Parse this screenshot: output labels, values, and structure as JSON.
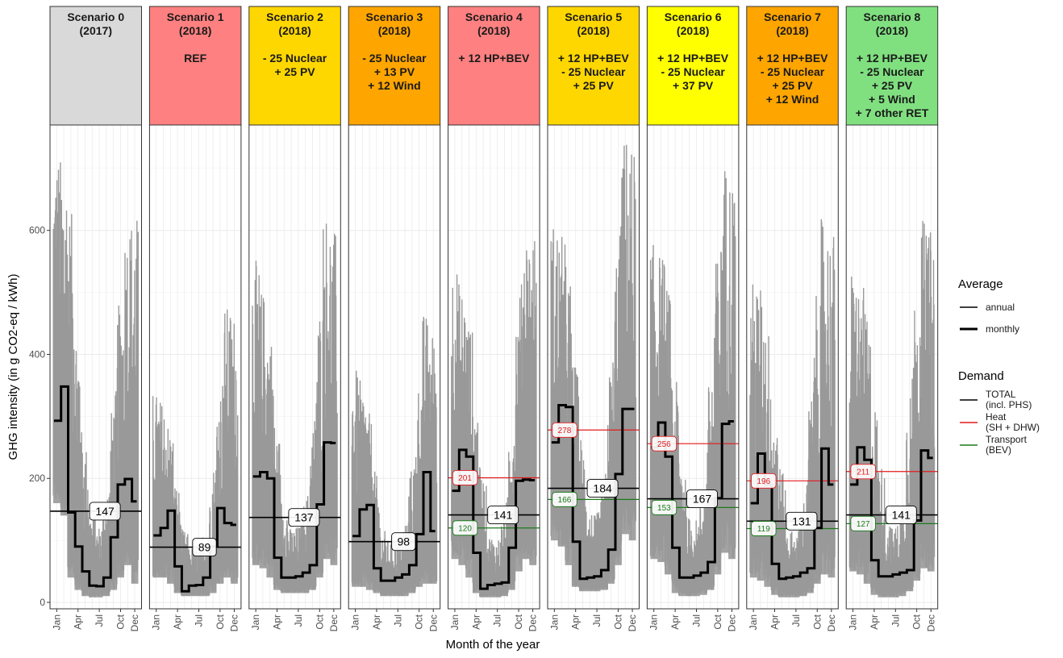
{
  "chart_data": {
    "type": "line",
    "xlabel": "Month of the year",
    "ylabel": "GHG intensity (in g CO2-eq / kWh)",
    "ylim": [
      0,
      770
    ],
    "yticks": [
      0,
      200,
      400,
      600
    ],
    "ytick_labels": [
      "0",
      "200",
      "400",
      "600"
    ],
    "xticks": [
      "Jan",
      "Apr",
      "Jul",
      "Oct",
      "Dec"
    ],
    "xtick_months": [
      1,
      4,
      7,
      10,
      12
    ],
    "colors": {
      "hourly": "#999999",
      "total": "#000000",
      "heat": "#e41a1c",
      "transport": "#1b7a1b",
      "strip_grey": "#d9d9d9",
      "strip_red": "#ff8080",
      "strip_gold": "#ffd700",
      "strip_orange": "#ffa500",
      "strip_yellow": "#ffff00",
      "strip_green": "#80e080"
    },
    "legend": {
      "average_title": "Average",
      "average_items": [
        "annual",
        "monthly"
      ],
      "demand_title": "Demand",
      "demand_items": [
        {
          "lines": [
            "TOTAL",
            "(incl. PHS)"
          ],
          "color": "#000000"
        },
        {
          "lines": [
            "Heat",
            "(SH + DHW)"
          ],
          "color": "#e41a1c"
        },
        {
          "lines": [
            "Transport",
            "(BEV)"
          ],
          "color": "#1b7a1b"
        }
      ]
    },
    "panels": [
      {
        "title": [
          "Scenario 0",
          "(2017)"
        ],
        "color": "#d9d9d9",
        "monthly": [
          293,
          348,
          145,
          90,
          50,
          27,
          26,
          40,
          105,
          190,
          199,
          163
        ],
        "annual": 147,
        "annual_label": "147",
        "heat": null,
        "transport": null,
        "hourly_max": [
          730,
          720,
          660,
          480,
          280,
          150,
          120,
          160,
          300,
          470,
          620,
          630
        ],
        "hourly_min": [
          160,
          140,
          40,
          20,
          10,
          8,
          8,
          10,
          20,
          40,
          60,
          30
        ]
      },
      {
        "title": [
          "Scenario 1",
          "(2018)",
          "",
          "REF"
        ],
        "color": "#ff8080",
        "monthly": [
          108,
          120,
          148,
          58,
          18,
          27,
          28,
          40,
          90,
          152,
          128,
          125
        ],
        "annual": 89,
        "annual_label": "89",
        "heat": null,
        "transport": null,
        "hourly_max": [
          340,
          330,
          300,
          200,
          120,
          90,
          90,
          110,
          200,
          330,
          480,
          470
        ],
        "hourly_min": [
          40,
          40,
          30,
          15,
          10,
          10,
          10,
          10,
          15,
          30,
          40,
          30
        ]
      },
      {
        "title": [
          "Scenario 2",
          "(2018)",
          "",
          "- 25 Nuclear",
          "+ 25 PV"
        ],
        "color": "#ffd700",
        "monthly": [
          203,
          210,
          200,
          72,
          40,
          40,
          42,
          48,
          60,
          158,
          258,
          257
        ],
        "annual": 137,
        "annual_label": "137",
        "heat": null,
        "transport": null,
        "hourly_max": [
          560,
          510,
          470,
          300,
          170,
          120,
          120,
          150,
          260,
          450,
          640,
          600
        ],
        "hourly_min": [
          60,
          55,
          40,
          20,
          15,
          15,
          15,
          15,
          20,
          40,
          70,
          60
        ]
      },
      {
        "title": [
          "Scenario 3",
          "(2018)",
          "",
          "- 25 Nuclear",
          "+ 13 PV",
          "+ 12 Wind"
        ],
        "color": "#ffa500",
        "monthly": [
          107,
          150,
          157,
          55,
          35,
          35,
          40,
          45,
          60,
          110,
          210,
          115
        ],
        "annual": 98,
        "annual_label": "98",
        "heat": null,
        "transport": null,
        "hourly_max": [
          380,
          360,
          320,
          220,
          120,
          100,
          100,
          120,
          200,
          340,
          470,
          440
        ],
        "hourly_min": [
          25,
          25,
          20,
          15,
          10,
          10,
          10,
          10,
          15,
          25,
          30,
          30
        ]
      },
      {
        "title": [
          "Scenario 4",
          "(2018)",
          "",
          "+ 12 HP+BEV"
        ],
        "color": "#ff8080",
        "monthly": [
          180,
          246,
          235,
          80,
          22,
          28,
          30,
          32,
          88,
          196,
          198,
          197
        ],
        "annual": 141,
        "annual_label": "141",
        "heat": 201,
        "heat_label": "201",
        "transport": 120,
        "transport_label": "120",
        "hourly_max": [
          560,
          520,
          480,
          350,
          220,
          110,
          100,
          130,
          280,
          480,
          620,
          600
        ],
        "hourly_min": [
          70,
          60,
          40,
          15,
          8,
          8,
          8,
          10,
          20,
          50,
          70,
          60
        ]
      },
      {
        "title": [
          "Scenario 5",
          "(2018)",
          "",
          "+ 12 HP+BEV",
          "- 25 Nuclear",
          "+ 25 PV"
        ],
        "color": "#ffd700",
        "monthly": [
          258,
          318,
          315,
          98,
          38,
          40,
          42,
          52,
          85,
          207,
          312,
          312
        ],
        "annual": 184,
        "annual_label": "184",
        "heat": 278,
        "heat_label": "278",
        "transport": 166,
        "transport_label": "166",
        "hourly_max": [
          620,
          600,
          560,
          400,
          280,
          150,
          140,
          170,
          360,
          560,
          760,
          740
        ],
        "hourly_min": [
          100,
          90,
          60,
          25,
          18,
          18,
          18,
          20,
          30,
          60,
          110,
          100
        ]
      },
      {
        "title": [
          "Scenario 6",
          "(2018)",
          "",
          "+ 12 HP+BEV",
          "- 25 Nuclear",
          "+ 37 PV"
        ],
        "color": "#ffff00",
        "monthly": [
          250,
          290,
          235,
          88,
          40,
          40,
          43,
          48,
          65,
          168,
          288,
          292
        ],
        "annual": 167,
        "annual_label": "167",
        "heat": 256,
        "heat_label": "256",
        "transport": 153,
        "transport_label": "153",
        "hourly_max": [
          580,
          570,
          530,
          380,
          260,
          140,
          130,
          160,
          340,
          540,
          720,
          700
        ],
        "hourly_min": [
          70,
          65,
          45,
          15,
          10,
          10,
          10,
          12,
          20,
          45,
          80,
          70
        ]
      },
      {
        "title": [
          "Scenario 7",
          "(2018)",
          "",
          "+ 12 HP+BEV",
          "- 25 Nuclear",
          "+ 25 PV",
          "+ 12 Wind"
        ],
        "color": "#ffa500",
        "monthly": [
          160,
          240,
          190,
          62,
          38,
          40,
          42,
          48,
          55,
          120,
          248,
          190
        ],
        "annual": 131,
        "annual_label": "131",
        "heat": 196,
        "heat_label": "196",
        "transport": 119,
        "transport_label": "119",
        "hourly_max": [
          520,
          520,
          470,
          330,
          230,
          120,
          110,
          140,
          300,
          480,
          620,
          600
        ],
        "hourly_min": [
          40,
          35,
          25,
          12,
          8,
          8,
          8,
          10,
          15,
          30,
          45,
          40
        ]
      },
      {
        "title": [
          "Scenario 8",
          "(2018)",
          "",
          "+ 12 HP+BEV",
          "- 25 Nuclear",
          "+ 25 PV",
          "+ 5 Wind",
          "+ 7 other RET"
        ],
        "color": "#80e080",
        "monthly": [
          190,
          250,
          230,
          68,
          42,
          42,
          45,
          48,
          52,
          132,
          245,
          233
        ],
        "annual": 141,
        "annual_label": "141",
        "heat": 211,
        "heat_label": "211",
        "transport": 127,
        "transport_label": "127",
        "hourly_max": [
          540,
          520,
          480,
          340,
          240,
          130,
          120,
          150,
          320,
          500,
          620,
          600
        ],
        "hourly_min": [
          50,
          45,
          30,
          12,
          8,
          8,
          8,
          10,
          18,
          35,
          55,
          50
        ]
      }
    ]
  }
}
